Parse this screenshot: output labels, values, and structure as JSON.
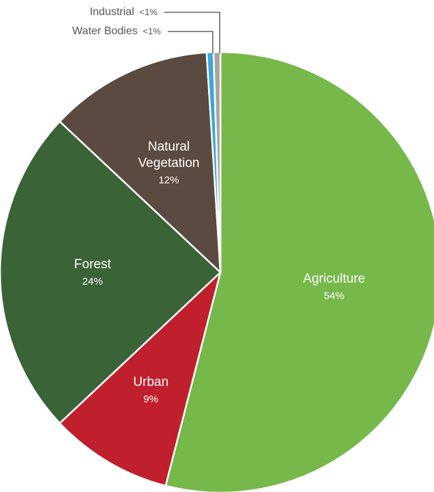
{
  "chart_data": {
    "type": "pie",
    "title": "",
    "start_angle_deg": 0,
    "direction": "clockwise",
    "slices": [
      {
        "label": "Agriculture",
        "value": 54,
        "pct_label": "54%",
        "color": "#76b84a",
        "label_style": "inside"
      },
      {
        "label": "Urban",
        "value": 9,
        "pct_label": "9%",
        "color": "#c0202e",
        "label_style": "inside"
      },
      {
        "label": "Forest",
        "value": 24,
        "pct_label": "24%",
        "color": "#3a6338",
        "label_style": "inside"
      },
      {
        "label": "Natural Vegetation",
        "lines": [
          "Natural",
          "Vegetation"
        ],
        "value": 12,
        "pct_label": "12%",
        "color": "#5b4a40",
        "label_style": "inside"
      },
      {
        "label": "Water Bodies",
        "value": 0.5,
        "pct_label": "<1%",
        "color": "#3aa7dc",
        "label_style": "callout"
      },
      {
        "label": "Industrial",
        "value": 0.5,
        "pct_label": "<1%",
        "color": "#a9a3a3",
        "label_style": "callout"
      }
    ]
  }
}
